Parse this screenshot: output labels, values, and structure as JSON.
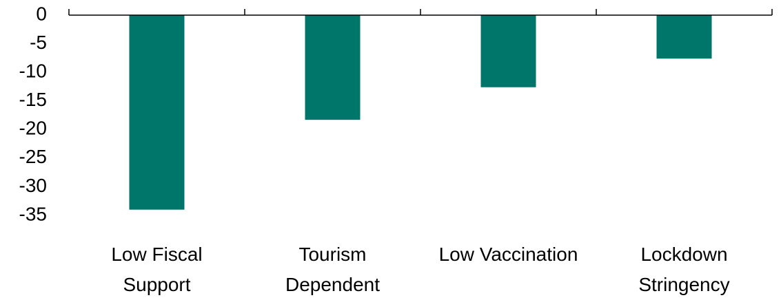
{
  "chart_data": {
    "type": "bar",
    "categories": [
      "Low Fiscal Support",
      "Tourism Dependent",
      "Low Vaccination",
      "Lockdown Stringency"
    ],
    "values": [
      -34,
      -18.3,
      -12.6,
      -7.6
    ],
    "color": "#00756a",
    "ylim": [
      -35,
      0
    ],
    "yticks": [
      0,
      -5,
      -10,
      -15,
      -20,
      -25,
      -30,
      -35
    ],
    "grid": false
  }
}
